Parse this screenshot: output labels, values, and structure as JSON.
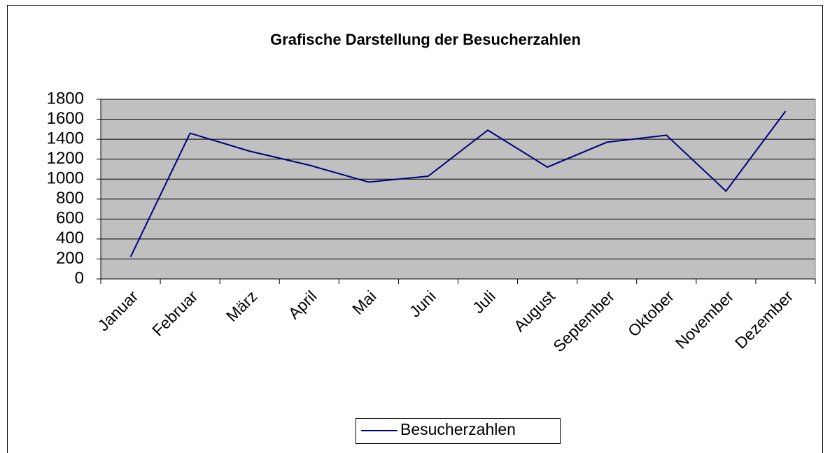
{
  "chart_data": {
    "type": "line",
    "title": "Grafische Darstellung der Besucherzahlen",
    "categories": [
      "Januar",
      "Februar",
      "März",
      "April",
      "Mai",
      "Juni",
      "Juli",
      "August",
      "September",
      "Oktober",
      "November",
      "Dezember"
    ],
    "series": [
      {
        "name": "Besucherzahlen",
        "color": "#000080",
        "values": [
          220,
          1460,
          1280,
          1140,
          970,
          1030,
          1490,
          1120,
          1370,
          1440,
          880,
          1680
        ]
      }
    ],
    "ylim": [
      0,
      1800
    ],
    "yticks": [
      0,
      200,
      400,
      600,
      800,
      1000,
      1200,
      1400,
      1600,
      1800
    ],
    "grid": true,
    "plot_background": "#c0c0c0",
    "legend": "bottom"
  }
}
